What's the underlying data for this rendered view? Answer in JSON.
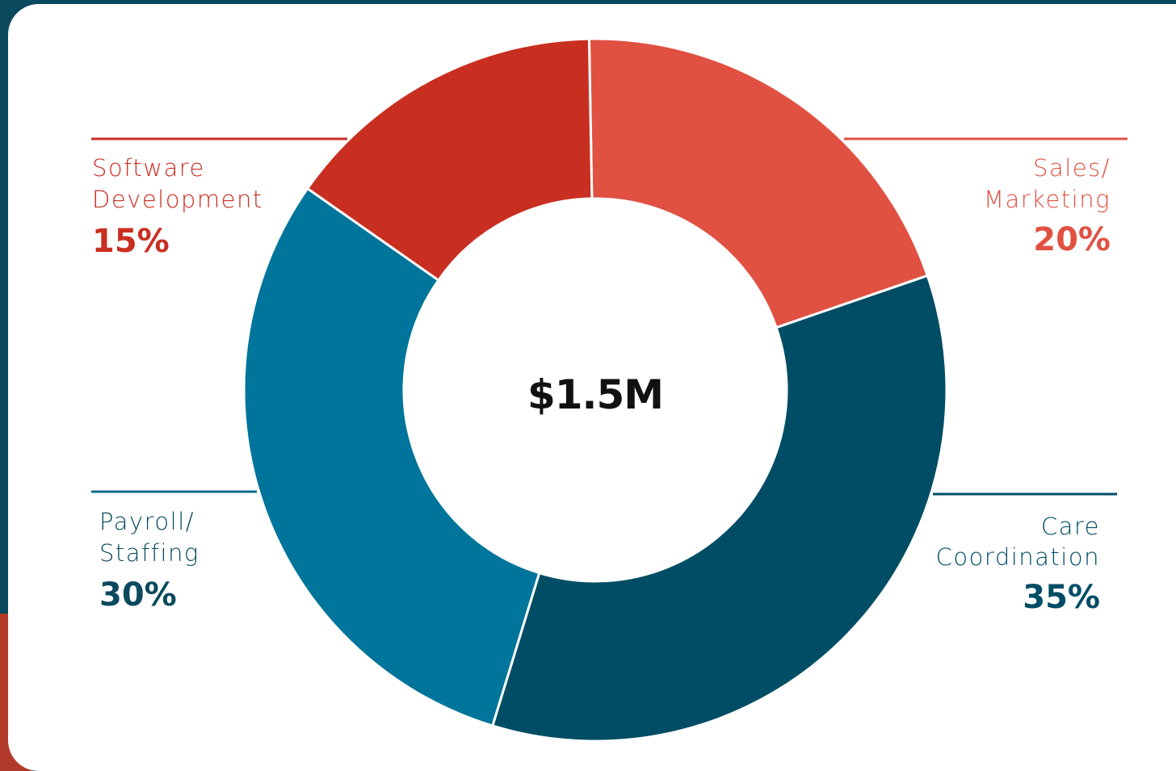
{
  "colors": {
    "frame": "#0b4a5e",
    "card": "#ffffff",
    "center_text": "#111111"
  },
  "chart_data": {
    "type": "pie",
    "variant": "donut",
    "center_label": "$1.5M",
    "slices": [
      {
        "label_lines": [
          "Sales/",
          "Marketing"
        ],
        "value": 20,
        "value_label": "20%",
        "color": "#e05142",
        "label_color": "#e05142",
        "label_side": "top-right"
      },
      {
        "label_lines": [
          "Care",
          "Coordination"
        ],
        "value": 35,
        "value_label": "35%",
        "color": "#004d65",
        "label_color": "#004d65",
        "label_side": "bottom-right"
      },
      {
        "label_lines": [
          "Payroll/",
          "Staffing"
        ],
        "value": 30,
        "value_label": "30%",
        "color": "#00759b",
        "label_color": "#0b4a5e",
        "label_side": "bottom-left"
      },
      {
        "label_lines": [
          "Software",
          "Development"
        ],
        "value": 15,
        "value_label": "15%",
        "color": "#c92f21",
        "label_color": "#c92f21",
        "label_side": "top-left"
      }
    ]
  }
}
